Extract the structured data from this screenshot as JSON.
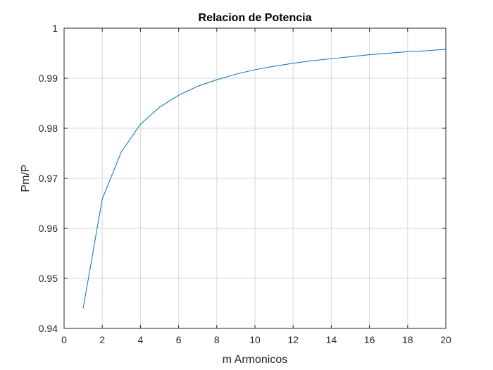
{
  "chart_data": {
    "type": "line",
    "title": "Relacion de Potencia",
    "xlabel": "m Armonicos",
    "ylabel": "Pm/P",
    "xlim": [
      0,
      20
    ],
    "ylim": [
      0.94,
      1
    ],
    "xticks": [
      0,
      2,
      4,
      6,
      8,
      10,
      12,
      14,
      16,
      18,
      20
    ],
    "xtick_labels": [
      "0",
      "2",
      "4",
      "6",
      "8",
      "10",
      "12",
      "14",
      "16",
      "18",
      "20"
    ],
    "yticks": [
      0.94,
      0.95,
      0.96,
      0.97,
      0.98,
      0.99,
      1
    ],
    "ytick_labels": [
      "0.94",
      "0.95",
      "0.96",
      "0.97",
      "0.98",
      "0.99",
      "1"
    ],
    "grid": true,
    "series": [
      {
        "name": "Pm/P",
        "color": "#0072BD",
        "x": [
          1,
          2,
          3,
          4,
          5,
          6,
          7,
          8,
          9,
          10,
          11,
          12,
          13,
          14,
          15,
          16,
          17,
          18,
          19,
          20
        ],
        "y": [
          0.944,
          0.9659,
          0.9753,
          0.9808,
          0.9842,
          0.9866,
          0.9884,
          0.9897,
          0.9908,
          0.9917,
          0.9924,
          0.993,
          0.9935,
          0.9939,
          0.9943,
          0.9947,
          0.995,
          0.9953,
          0.9955,
          0.9958
        ]
      }
    ]
  },
  "colors": {
    "axis": "#262626",
    "grid": "#d9d9d9",
    "background": "#ffffff"
  }
}
